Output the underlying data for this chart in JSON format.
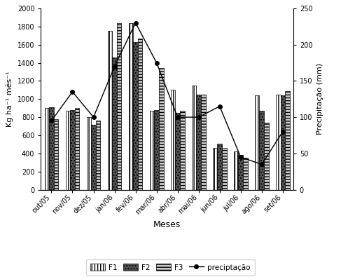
{
  "months": [
    "out/05",
    "nov/05",
    "dez/05",
    "jan/06",
    "fev/06",
    "mar/06",
    "abr/06",
    "mai/06",
    "jun/06",
    "jul/06",
    "ago/06",
    "set/06"
  ],
  "F1": [
    900,
    870,
    800,
    1750,
    1840,
    870,
    1100,
    1150,
    460,
    420,
    1040,
    1050
  ],
  "F2": [
    910,
    880,
    720,
    1460,
    1630,
    880,
    850,
    1050,
    510,
    380,
    870,
    1040
  ],
  "F3": [
    780,
    900,
    760,
    1840,
    1670,
    1340,
    870,
    1050,
    460,
    350,
    740,
    1090
  ],
  "precip": [
    95,
    135,
    100,
    170,
    230,
    175,
    100,
    100,
    115,
    45,
    35,
    80
  ],
  "ylabel_left": "Kg ha⁻¹ mês⁻¹",
  "ylabel_right": "Precipitação (mm)",
  "xlabel": "Meses",
  "ylim_left": [
    0,
    2000
  ],
  "ylim_right": [
    0,
    250
  ],
  "yticks_left": [
    0,
    200,
    400,
    600,
    800,
    1000,
    1200,
    1400,
    1600,
    1800,
    2000
  ],
  "yticks_right": [
    0,
    50,
    100,
    150,
    200,
    250
  ],
  "bar_width": 0.22,
  "hatch_F1": "||||",
  "hatch_F2": "....",
  "hatch_F3": "----",
  "facecolor_F1": "white",
  "facecolor_F2": "#555555",
  "facecolor_F3": "#cccccc",
  "bar_edgecolor": "black",
  "line_color": "black",
  "marker": "o",
  "legend_label_F1": "F1",
  "legend_label_F2": "F2",
  "legend_label_F3": "F3",
  "legend_label_precip": "preciptação"
}
